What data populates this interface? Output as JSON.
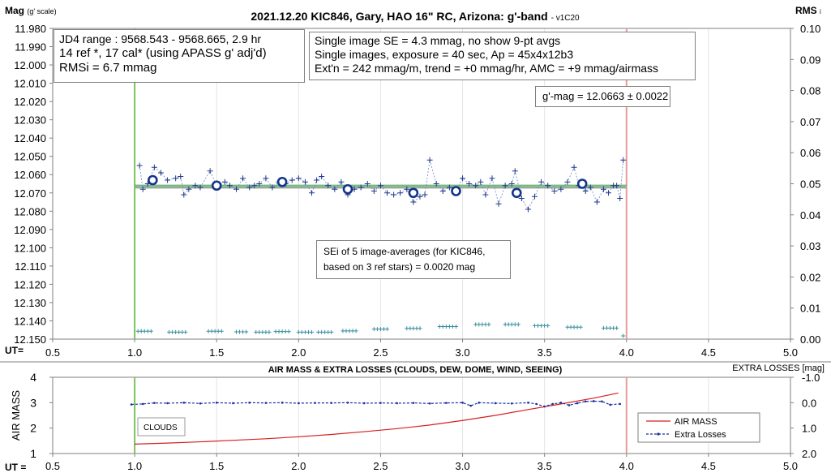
{
  "chart_data": [
    {
      "type": "scatter",
      "title": "2021.12.20 KIC846, Gary, HAO 16\" RC, Arizona: g'-band",
      "title_suffix": "- v1C20",
      "ylabel_main": "Mag",
      "ylabel_unit": "(g' scale)",
      "y2label": "RMS",
      "y2label_suffix": "i",
      "xlabel": "UT=",
      "xlim": [
        0.5,
        5.0
      ],
      "ylim": [
        12.15,
        11.98
      ],
      "y2lim": [
        0.0,
        0.1
      ],
      "x_ticks": [
        "0.5",
        "1.0",
        "1.5",
        "2.0",
        "2.5",
        "3.0",
        "3.5",
        "4.0",
        "4.5",
        "5.0"
      ],
      "y_ticks": [
        "11.980",
        "11.990",
        "12.000",
        "12.010",
        "12.020",
        "12.030",
        "12.040",
        "12.050",
        "12.060",
        "12.070",
        "12.080",
        "12.090",
        "12.100",
        "12.110",
        "12.120",
        "12.130",
        "12.140",
        "12.150"
      ],
      "y2_ticks": [
        "0.10",
        "0.09",
        "0.08",
        "0.07",
        "0.06",
        "0.05",
        "0.04",
        "0.03",
        "0.02",
        "0.01",
        "0.00"
      ],
      "vlines": [
        {
          "x": 1.0,
          "color": "#7cc45a"
        },
        {
          "x": 4.0,
          "color": "#e89a9a"
        }
      ],
      "fit_line": {
        "x": [
          1.0,
          4.0
        ],
        "y": [
          12.0663,
          12.0663
        ],
        "color": "#7cc58a"
      },
      "series": [
        {
          "marker": "plus",
          "x": [
            1.03,
            1.05,
            1.08,
            1.12,
            1.16,
            1.2,
            1.25,
            1.28,
            1.3,
            1.33,
            1.37,
            1.4,
            1.46,
            1.5,
            1.55,
            1.58,
            1.62,
            1.66,
            1.7,
            1.73,
            1.76,
            1.8,
            1.84,
            1.88,
            1.92,
            1.96,
            2.0,
            2.04,
            2.08,
            2.11,
            2.14,
            2.18,
            2.22,
            2.26,
            2.3,
            2.34,
            2.38,
            2.42,
            2.46,
            2.5,
            2.54,
            2.58,
            2.62,
            2.66,
            2.7,
            2.74,
            2.77,
            2.8,
            2.84,
            2.88,
            2.92,
            2.96,
            3.0,
            3.04,
            3.08,
            3.11,
            3.14,
            3.18,
            3.22,
            3.26,
            3.3,
            3.32,
            3.36,
            3.4,
            3.44,
            3.48,
            3.52,
            3.56,
            3.6,
            3.64,
            3.68,
            3.71,
            3.75,
            3.78,
            3.82,
            3.86,
            3.89,
            3.92,
            3.94,
            3.96,
            3.98
          ],
          "y": [
            12.055,
            12.068,
            12.065,
            12.056,
            12.059,
            12.063,
            12.062,
            12.061,
            12.071,
            12.068,
            12.066,
            12.067,
            12.058,
            12.066,
            12.064,
            12.066,
            12.068,
            12.062,
            12.067,
            12.066,
            12.065,
            12.062,
            12.067,
            12.064,
            12.065,
            12.063,
            12.062,
            12.064,
            12.07,
            12.063,
            12.061,
            12.066,
            12.068,
            12.064,
            12.071,
            12.068,
            12.067,
            12.065,
            12.069,
            12.066,
            12.07,
            12.071,
            12.07,
            12.068,
            12.075,
            12.072,
            12.071,
            12.052,
            12.065,
            12.069,
            12.067,
            12.069,
            12.062,
            12.065,
            12.066,
            12.064,
            12.071,
            12.062,
            12.076,
            12.066,
            12.065,
            12.058,
            12.073,
            12.079,
            12.072,
            12.064,
            12.066,
            12.069,
            12.068,
            12.064,
            12.056,
            12.066,
            12.069,
            12.067,
            12.075,
            12.068,
            12.07,
            12.066,
            12.066,
            12.073,
            12.052
          ]
        },
        {
          "marker": "open-circle",
          "x": [
            1.11,
            1.5,
            1.9,
            2.3,
            2.7,
            2.96,
            3.33,
            3.73
          ],
          "y": [
            12.063,
            12.066,
            12.064,
            12.068,
            12.07,
            12.069,
            12.07,
            12.065
          ]
        },
        {
          "marker": "plus",
          "axis": "y2",
          "x": [
            1.02,
            1.04,
            1.06,
            1.08,
            1.1,
            1.21,
            1.23,
            1.25,
            1.27,
            1.29,
            1.31,
            1.45,
            1.47,
            1.49,
            1.51,
            1.53,
            1.62,
            1.64,
            1.66,
            1.68,
            1.74,
            1.76,
            1.78,
            1.8,
            1.82,
            1.86,
            1.88,
            1.9,
            1.92,
            1.94,
            2.0,
            2.02,
            2.04,
            2.06,
            2.08,
            2.12,
            2.14,
            2.16,
            2.18,
            2.2,
            2.27,
            2.29,
            2.31,
            2.33,
            2.35,
            2.46,
            2.48,
            2.5,
            2.52,
            2.54,
            2.66,
            2.68,
            2.7,
            2.72,
            2.74,
            2.86,
            2.88,
            2.9,
            2.92,
            2.94,
            2.96,
            3.08,
            3.1,
            3.12,
            3.14,
            3.16,
            3.26,
            3.28,
            3.3,
            3.32,
            3.34,
            3.44,
            3.46,
            3.48,
            3.5,
            3.52,
            3.64,
            3.66,
            3.68,
            3.7,
            3.72,
            3.86,
            3.88,
            3.9,
            3.92,
            3.94,
            3.98
          ],
          "y": [
            0.0015,
            0.0015,
            0.0015,
            0.0015,
            0.0015,
            0.0012,
            0.0012,
            0.0012,
            0.0012,
            0.0012,
            0.0012,
            0.0015,
            0.0015,
            0.0015,
            0.0015,
            0.0015,
            0.0013,
            0.0013,
            0.0013,
            0.0013,
            0.0012,
            0.0012,
            0.0012,
            0.0012,
            0.0012,
            0.0014,
            0.0014,
            0.0014,
            0.0014,
            0.0014,
            0.0012,
            0.0012,
            0.0012,
            0.0012,
            0.0012,
            0.0012,
            0.0012,
            0.0012,
            0.0012,
            0.0012,
            0.0016,
            0.0016,
            0.0016,
            0.0016,
            0.0016,
            0.0022,
            0.0022,
            0.0022,
            0.0022,
            0.0022,
            0.0024,
            0.0024,
            0.0024,
            0.0024,
            0.0024,
            0.003,
            0.003,
            0.003,
            0.003,
            0.003,
            0.003,
            0.0037,
            0.0037,
            0.0037,
            0.0037,
            0.0037,
            0.0037,
            0.0037,
            0.0037,
            0.0037,
            0.0037,
            0.0033,
            0.0033,
            0.0033,
            0.0033,
            0.0033,
            0.0028,
            0.0028,
            0.0028,
            0.0028,
            0.0028,
            0.0025,
            0.0025,
            0.0025,
            0.0025,
            0.0025,
            0.0
          ]
        }
      ]
    },
    {
      "type": "line",
      "title": "AIR MASS & EXTRA LOSSES (CLOUDS, DEW, DOME, WIND, SEEING)",
      "ylabel": "AIR MASS",
      "y2label": "EXTRA LOSSES [mag]",
      "xlabel": "UT =",
      "xlim": [
        0.5,
        5.0
      ],
      "ylim": [
        1,
        4
      ],
      "y2lim": [
        2.0,
        -1.0
      ],
      "x_ticks": [
        "0.5",
        "1.0",
        "1.5",
        "2.0",
        "2.5",
        "3.0",
        "3.5",
        "4.0",
        "4.5",
        "5.0"
      ],
      "y_ticks": [
        "4",
        "3",
        "2",
        "1"
      ],
      "y2_ticks": [
        "-1.0",
        "0.0",
        "1.0",
        "2.0"
      ],
      "vlines": [
        {
          "x": 1.0,
          "color": "#7cc45a"
        },
        {
          "x": 4.0,
          "color": "#e89a9a"
        }
      ],
      "annotation": "CLOUDS",
      "series": [
        {
          "name": "AIR MASS",
          "color": "#d42020",
          "x": [
            1.0,
            1.2,
            1.4,
            1.6,
            1.8,
            2.0,
            2.2,
            2.4,
            2.6,
            2.8,
            3.0,
            3.2,
            3.4,
            3.6,
            3.8,
            3.95
          ],
          "y": [
            1.37,
            1.41,
            1.46,
            1.52,
            1.58,
            1.66,
            1.75,
            1.86,
            1.98,
            2.12,
            2.3,
            2.5,
            2.73,
            2.95,
            3.18,
            3.38
          ]
        },
        {
          "name": "Extra Losses",
          "color": "#1a2fa0",
          "axis": "y2",
          "x": [
            0.98,
            1.05,
            1.12,
            1.2,
            1.3,
            1.4,
            1.5,
            1.6,
            1.7,
            1.8,
            1.9,
            2.0,
            2.1,
            2.2,
            2.3,
            2.4,
            2.5,
            2.6,
            2.7,
            2.8,
            2.9,
            3.0,
            3.05,
            3.1,
            3.2,
            3.3,
            3.4,
            3.45,
            3.5,
            3.55,
            3.6,
            3.65,
            3.7,
            3.75,
            3.8,
            3.85,
            3.9,
            3.96
          ],
          "y": [
            0.07,
            0.05,
            0.01,
            0.02,
            0.0,
            0.03,
            0.0,
            0.02,
            0.0,
            0.01,
            0.0,
            0.02,
            0.01,
            0.01,
            0.0,
            0.02,
            0.01,
            0.02,
            0.01,
            0.03,
            0.01,
            0.0,
            0.12,
            0.0,
            0.02,
            0.03,
            0.0,
            0.05,
            0.15,
            0.05,
            0.0,
            0.1,
            0.02,
            -0.05,
            -0.06,
            -0.05,
            0.08,
            0.05
          ]
        }
      ]
    }
  ],
  "notes": {
    "box1": [
      "JD4 range : 9568.543 - 9568.665,  2.9  hr",
      "14 ref *, 17 cal* (using APASS g' adj'd)",
      "RMSi = 6.7 mmag"
    ],
    "box2": [
      "Single image SE = 4.3 mmag, no show  9-pt avgs",
      "Single images, exposure = 40 sec, Ap = 45x4x12b3",
      "Ext'n = 242 mmag/m, trend = +0 mmag/hr, AMC = +9 mmag/airmass"
    ],
    "gmag": "g'-mag = 12.0663 ± 0.0022",
    "sei": [
      "SEi of 5 image-averages (for KIC846,",
      "based on 3 ref stars) = 0.0020 mag"
    ]
  }
}
